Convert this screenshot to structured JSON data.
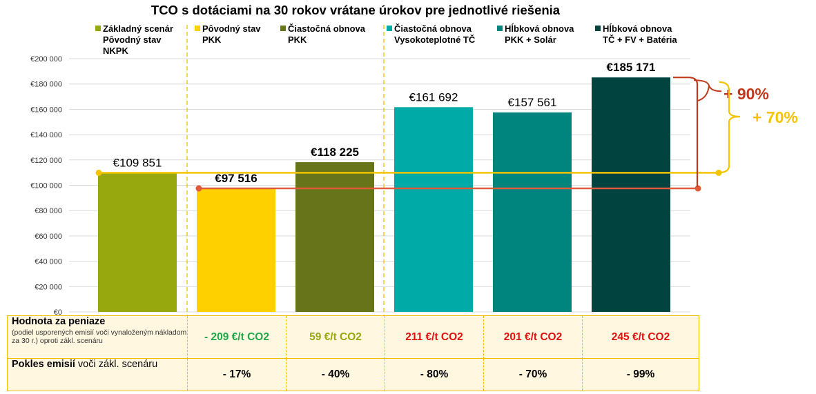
{
  "chart_data": {
    "type": "bar",
    "title": "TCO s dotáciami na 30 rokov vrátane úrokov pre jednotlivé riešenia",
    "categories": [
      "Základný scenár Pôvodný stav NKPK",
      "Pôvodný stav PKK",
      "Čiastočná obnova PKK",
      "Čiastočná obnova Vysokoteplotné TČ",
      "Hĺbková obnova PKK + Solár",
      "Hĺbková obnova TČ + FV + Batéria"
    ],
    "values": [
      109851,
      97516,
      118225,
      161692,
      157561,
      185171
    ],
    "value_labels": [
      "€109 851",
      "€97 516",
      "€118 225",
      "€161 692",
      "€157 561",
      "€185 171"
    ],
    "value_labels_bold": [
      false,
      true,
      true,
      false,
      false,
      true
    ],
    "colors": [
      "#97a80e",
      "#ffd000",
      "#67741a",
      "#00aaa6",
      "#00847e",
      "#01433f"
    ],
    "legend": [
      {
        "line1": "Základný scenár",
        "line2": "Pôvodný stav\nNKPK",
        "color": "#97a80e"
      },
      {
        "line1": "Pôvodný stav",
        "line2": "PKK",
        "color": "#ffd000"
      },
      {
        "line1": "Čiastočná obnova",
        "line2": "PKK",
        "color": "#67741a"
      },
      {
        "line1": "Čiastočná obnova",
        "line2": "Vysokoteplotné TČ",
        "color": "#00aaa6"
      },
      {
        "line1": "Hĺbková obnova",
        "line2": "PKK + Solár",
        "color": "#00847e"
      },
      {
        "line1": "Hĺbková obnova",
        "line2": "TČ + FV + Batéria",
        "color": "#01433f"
      }
    ],
    "ylim": [
      0,
      200000
    ],
    "yticks": [
      0,
      20000,
      40000,
      60000,
      80000,
      100000,
      120000,
      140000,
      160000,
      180000,
      200000
    ],
    "ytick_labels": [
      "€0",
      "€20 000",
      "€40 000",
      "€60 000",
      "€80 000",
      "€100 000",
      "€120 000",
      "€140 000",
      "€160 000",
      "€180 000",
      "€200 000"
    ],
    "grid": true,
    "reference_lines": [
      {
        "value": 109851,
        "color": "#f5c400",
        "label": "+ 70%"
      },
      {
        "value": 97516,
        "color": "#e05a3a",
        "label": "+ 90%"
      }
    ],
    "annotation_colors": {
      "plus90": "#c0391b",
      "plus70": "#f5c400"
    }
  },
  "table": {
    "row1": {
      "label": "Hodnota za peniaze",
      "sublabel": "(podiel usporených emisií voči vynaloženým nákladom za 30 r.) oproti zákl. scenáru",
      "values": [
        "- 209 €/t CO2",
        "59 €/t CO2",
        "211 €/t CO2",
        "201 €/t CO2",
        "245 €/t CO2"
      ],
      "colors": [
        "#1fa84a",
        "#97a80e",
        "#e01010",
        "#e01010",
        "#e01010"
      ]
    },
    "row2": {
      "label_bold": "Pokles emisií",
      "label_rest": " voči zákl. scenáru",
      "values": [
        "- 17%",
        "- 40%",
        "- 80%",
        "- 70%",
        "- 99%"
      ]
    }
  }
}
